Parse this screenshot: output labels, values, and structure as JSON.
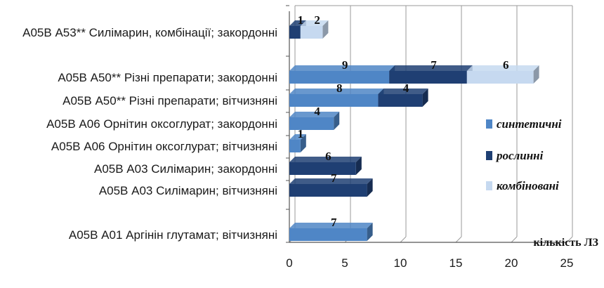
{
  "chart_data": {
    "type": "bar",
    "orientation": "horizontal",
    "stacked": true,
    "categories": [
      "А05В А53** Силімарин, комбінації; закордонні",
      "А05В А50** Різні препарати; закордонні",
      "А05В А50** Різні препарати; вітчизняні",
      "А05В А06 Орнітин оксоглурат; закордонні",
      "А05В А06 Орнітин оксоглурат; вітчизняні",
      "А05В А03 Силімарин; закордонні",
      "А05В А03 Силімарин; вітчизняні",
      "А05В А01 Аргінін глутамат; вітчизняні"
    ],
    "series": [
      {
        "name": "синтетичні",
        "color": "#4f86c6",
        "values": [
          0,
          9,
          8,
          4,
          1,
          0,
          0,
          7
        ]
      },
      {
        "name": "рослинні",
        "color": "#1f3f73",
        "values": [
          1,
          7,
          4,
          0,
          0,
          6,
          7,
          0
        ]
      },
      {
        "name": "комбіновані",
        "color": "#c6d9f0",
        "values": [
          2,
          6,
          0,
          0,
          0,
          0,
          0,
          0
        ]
      }
    ],
    "xlabel": "кількість ЛЗ",
    "ylabel": "",
    "xlim": [
      0,
      25
    ],
    "xticks": [
      "0",
      "5",
      "10",
      "15",
      "20",
      "25"
    ],
    "grid": true,
    "legend_position": "right"
  }
}
